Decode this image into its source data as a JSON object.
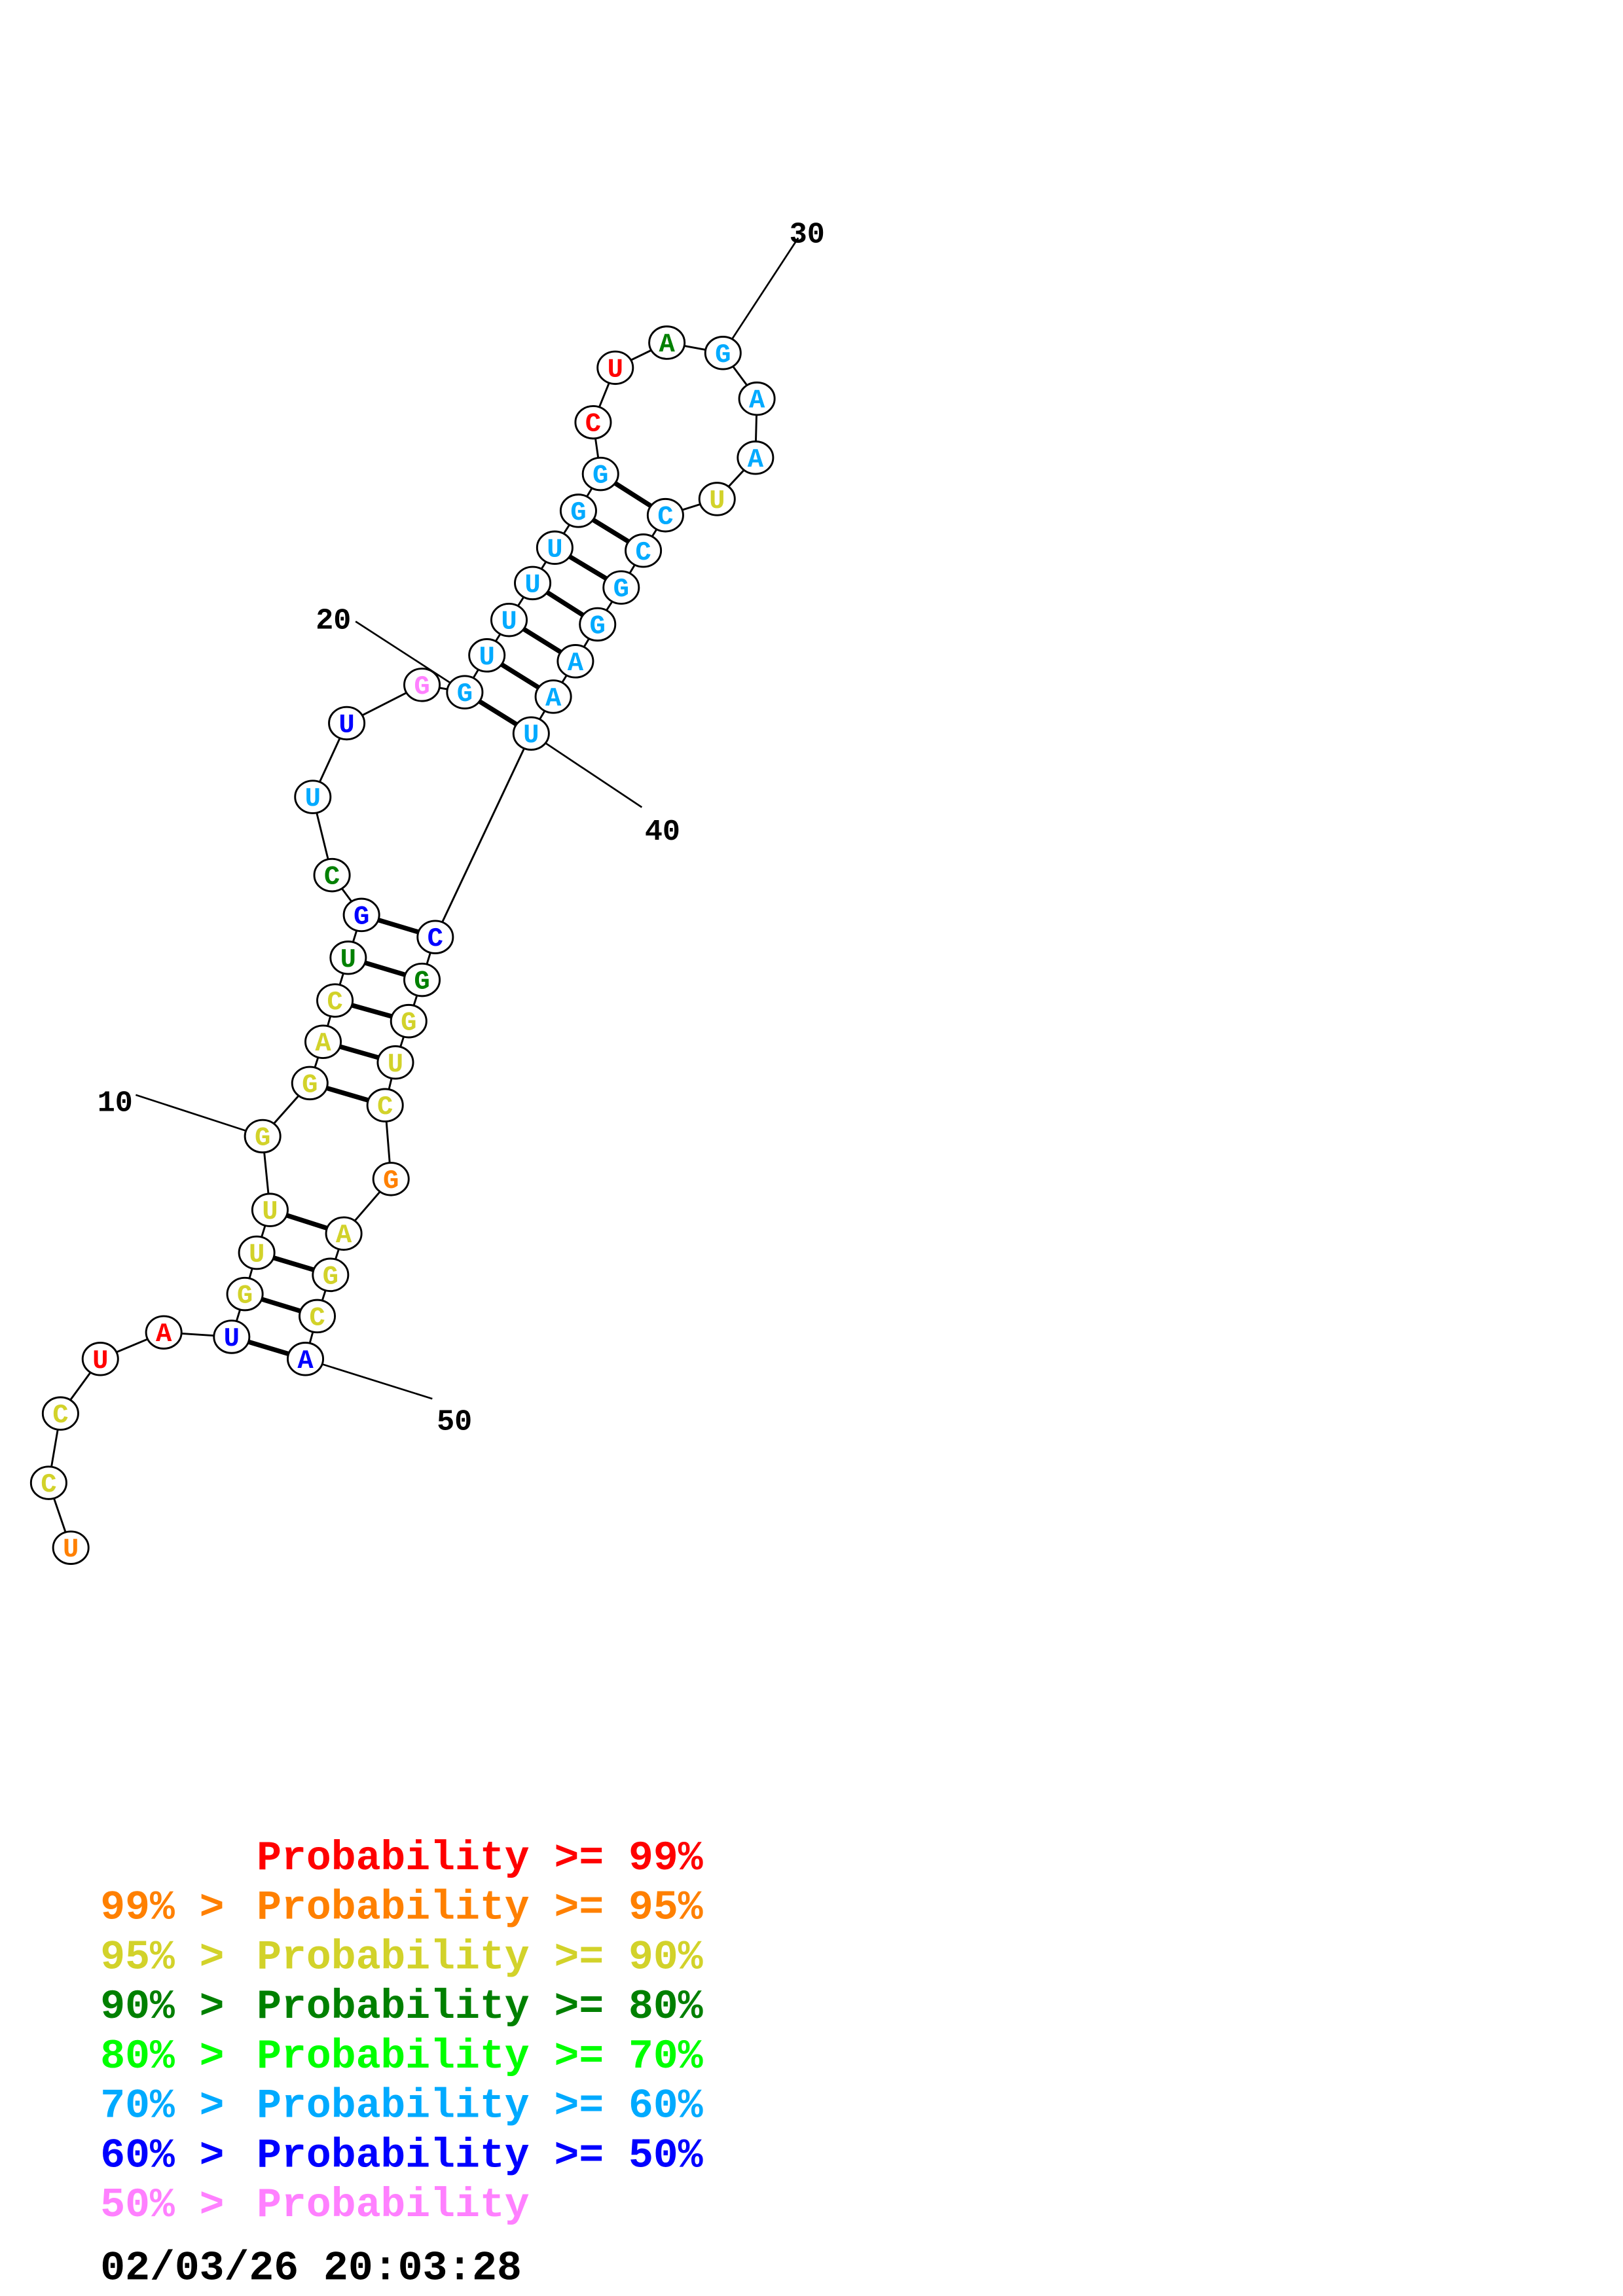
{
  "colors": {
    "p99": "#ff0000",
    "p95": "#ff8000",
    "p90": "#d2d22a",
    "p80": "#008000",
    "p70": "#00ff00",
    "p60": "#00aaff",
    "p50": "#0000ff",
    "plow": "#ff80ff"
  },
  "sequence": [
    {
      "base": "U",
      "cls": "p95"
    },
    {
      "base": "C",
      "cls": "p90"
    },
    {
      "base": "C",
      "cls": "p90"
    },
    {
      "base": "U",
      "cls": "p99"
    },
    {
      "base": "A",
      "cls": "p99"
    },
    {
      "base": "U",
      "cls": "p50"
    },
    {
      "base": "G",
      "cls": "p90"
    },
    {
      "base": "U",
      "cls": "p90"
    },
    {
      "base": "U",
      "cls": "p90"
    },
    {
      "base": "G",
      "cls": "p90"
    },
    {
      "base": "G",
      "cls": "p90"
    },
    {
      "base": "A",
      "cls": "p90"
    },
    {
      "base": "C",
      "cls": "p90"
    },
    {
      "base": "U",
      "cls": "p80"
    },
    {
      "base": "G",
      "cls": "p50"
    },
    {
      "base": "C",
      "cls": "p80"
    },
    {
      "base": "U",
      "cls": "p60"
    },
    {
      "base": "U",
      "cls": "p50"
    },
    {
      "base": "G",
      "cls": "plow"
    },
    {
      "base": "G",
      "cls": "p60"
    },
    {
      "base": "U",
      "cls": "p60"
    },
    {
      "base": "U",
      "cls": "p60"
    },
    {
      "base": "U",
      "cls": "p60"
    },
    {
      "base": "U",
      "cls": "p60"
    },
    {
      "base": "G",
      "cls": "p60"
    },
    {
      "base": "G",
      "cls": "p60"
    },
    {
      "base": "C",
      "cls": "p99"
    },
    {
      "base": "U",
      "cls": "p99"
    },
    {
      "base": "A",
      "cls": "p80"
    },
    {
      "base": "G",
      "cls": "p60"
    },
    {
      "base": "A",
      "cls": "p60"
    },
    {
      "base": "A",
      "cls": "p60"
    },
    {
      "base": "U",
      "cls": "p90"
    },
    {
      "base": "C",
      "cls": "p60"
    },
    {
      "base": "C",
      "cls": "p60"
    },
    {
      "base": "G",
      "cls": "p60"
    },
    {
      "base": "G",
      "cls": "p60"
    },
    {
      "base": "A",
      "cls": "p60"
    },
    {
      "base": "A",
      "cls": "p60"
    },
    {
      "base": "U",
      "cls": "p60"
    },
    {
      "base": "C",
      "cls": "p50"
    },
    {
      "base": "G",
      "cls": "p80"
    },
    {
      "base": "G",
      "cls": "p90"
    },
    {
      "base": "U",
      "cls": "p90"
    },
    {
      "base": "C",
      "cls": "p90"
    },
    {
      "base": "G",
      "cls": "p95"
    },
    {
      "base": "A",
      "cls": "p90"
    },
    {
      "base": "G",
      "cls": "p90"
    },
    {
      "base": "C",
      "cls": "p90"
    },
    {
      "base": "A",
      "cls": "p50"
    }
  ],
  "pairs": [
    [
      6,
      50
    ],
    [
      7,
      49
    ],
    [
      8,
      48
    ],
    [
      9,
      47
    ],
    [
      11,
      45
    ],
    [
      12,
      44
    ],
    [
      13,
      43
    ],
    [
      14,
      42
    ],
    [
      15,
      41
    ],
    [
      20,
      40
    ],
    [
      21,
      39
    ],
    [
      22,
      38
    ],
    [
      23,
      37
    ],
    [
      24,
      36
    ],
    [
      25,
      35
    ],
    [
      26,
      34
    ]
  ],
  "position_labels": [
    "10",
    "20",
    "30",
    "40",
    "50"
  ],
  "legend": [
    {
      "prefix": "",
      "text": "Probability >= 99%",
      "cls": "p99"
    },
    {
      "prefix": "99% > ",
      "text": "Probability >= 95%",
      "cls": "p95"
    },
    {
      "prefix": "95% > ",
      "text": "Probability >= 90%",
      "cls": "p90"
    },
    {
      "prefix": "90% > ",
      "text": "Probability >= 80%",
      "cls": "p80"
    },
    {
      "prefix": "80% > ",
      "text": "Probability >= 70%",
      "cls": "p70"
    },
    {
      "prefix": "70% > ",
      "text": "Probability >= 60%",
      "cls": "p60"
    },
    {
      "prefix": "60% > ",
      "text": "Probability >= 50%",
      "cls": "p50"
    },
    {
      "prefix": "50% > ",
      "text": "Probability",
      "cls": "plow"
    }
  ],
  "timestamp": "02/03/26 20:03:28"
}
